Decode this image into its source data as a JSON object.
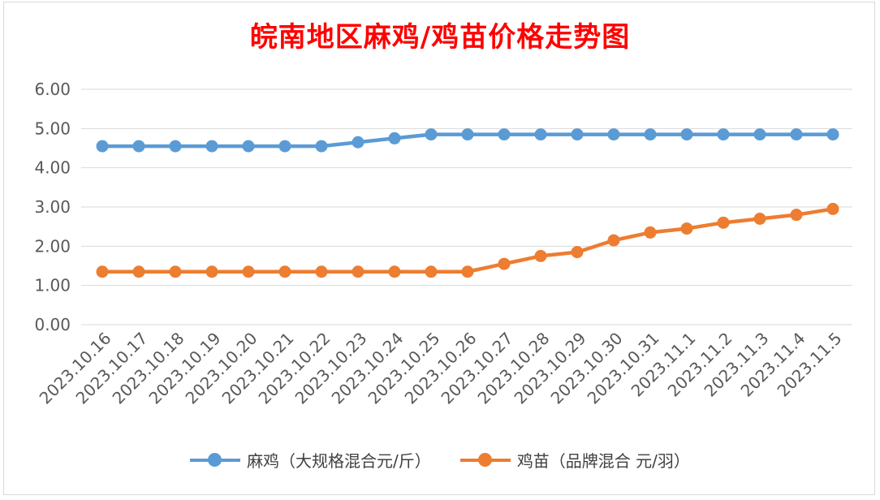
{
  "chart_data": {
    "type": "line",
    "title": "皖南地区麻鸡/鸡苗价格走势图",
    "xlabel": "",
    "ylabel": "",
    "ylim": [
      0,
      6
    ],
    "yticks": [
      "0.00",
      "1.00",
      "2.00",
      "3.00",
      "4.00",
      "5.00",
      "6.00"
    ],
    "grid": true,
    "legend_position": "bottom",
    "categories": [
      "2023.10.16",
      "2023.10.17",
      "2023.10.18",
      "2023.10.19",
      "2023.10.20",
      "2023.10.21",
      "2023.10.22",
      "2023.10.23",
      "2023.10.24",
      "2023.10.25",
      "2023.10.26",
      "2023.10.27",
      "2023.10.28",
      "2023.10.29",
      "2023.10.30",
      "2023.10.31",
      "2023.11.1",
      "2023.11.2",
      "2023.11.3",
      "2023.11.4",
      "2023.11.5"
    ],
    "series": [
      {
        "name": "麻鸡（大规格混合元/斤）",
        "color": "#5b9bd5",
        "values": [
          4.55,
          4.55,
          4.55,
          4.55,
          4.55,
          4.55,
          4.55,
          4.65,
          4.75,
          4.85,
          4.85,
          4.85,
          4.85,
          4.85,
          4.85,
          4.85,
          4.85,
          4.85,
          4.85,
          4.85,
          4.85
        ]
      },
      {
        "name": "鸡苗（品牌混合 元/羽）",
        "color": "#ed7d31",
        "values": [
          1.35,
          1.35,
          1.35,
          1.35,
          1.35,
          1.35,
          1.35,
          1.35,
          1.35,
          1.35,
          1.35,
          1.55,
          1.75,
          1.85,
          2.15,
          2.35,
          2.45,
          2.6,
          2.7,
          2.8,
          2.95
        ]
      }
    ]
  }
}
